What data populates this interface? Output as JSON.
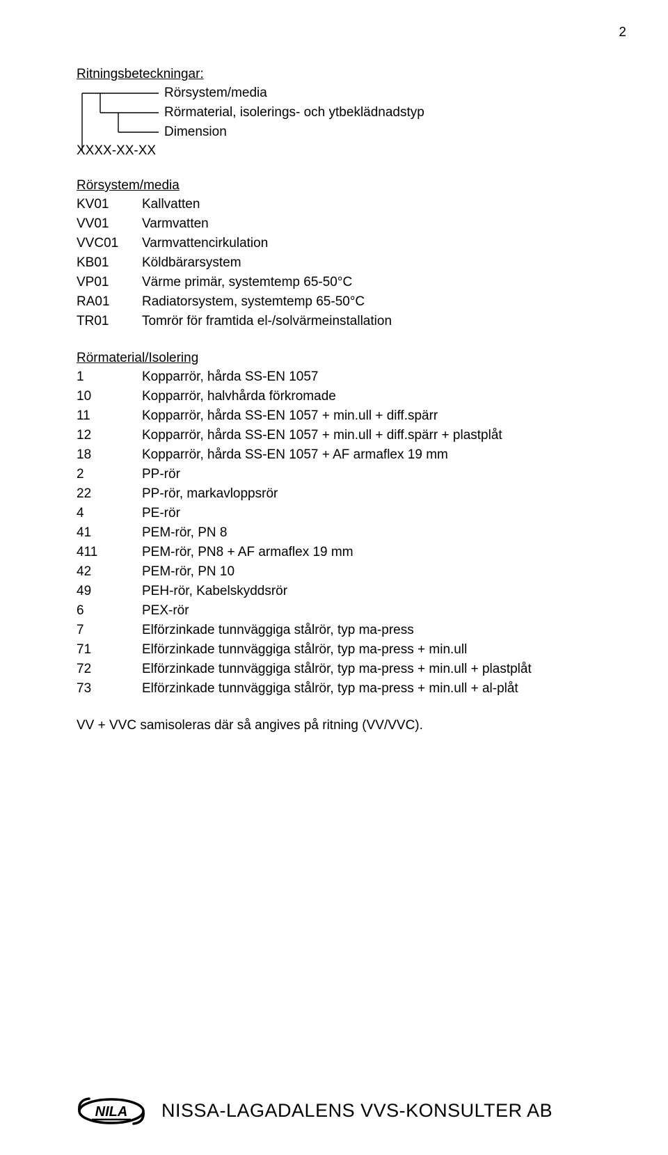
{
  "page_number": "2",
  "section1": {
    "title": "Ritningsbeteckningar:",
    "tree_labels": [
      "Rörsystem/media",
      "Rörmaterial, isolerings- och ytbeklädnadstyp",
      "Dimension"
    ],
    "code_line": "XXXX-XX-XX"
  },
  "rorsystem": {
    "title": "Rörsystem/media",
    "rows": [
      {
        "k": "KV01",
        "v": "Kallvatten"
      },
      {
        "k": "VV01",
        "v": "Varmvatten"
      },
      {
        "k": "VVC01",
        "v": "Varmvattencirkulation"
      },
      {
        "k": "KB01",
        "v": "Köldbärarsystem"
      },
      {
        "k": "VP01",
        "v": "Värme primär, systemtemp 65-50°C"
      },
      {
        "k": "RA01",
        "v": "Radiatorsystem, systemtemp 65-50°C"
      },
      {
        "k": "TR01",
        "v": "Tomrör för framtida el-/solvärmeinstallation"
      }
    ]
  },
  "material": {
    "title": "Rörmaterial/Isolering",
    "rows": [
      {
        "k": "1",
        "v": "Kopparrör, hårda SS-EN 1057"
      },
      {
        "k": "10",
        "v": "Kopparrör, halvhårda förkromade"
      },
      {
        "k": "11",
        "v": "Kopparrör, hårda SS-EN 1057 + min.ull + diff.spärr"
      },
      {
        "k": "12",
        "v": "Kopparrör, hårda SS-EN 1057 + min.ull + diff.spärr + plastplåt"
      },
      {
        "k": "18",
        "v": "Kopparrör, hårda SS-EN 1057 + AF armaflex 19 mm"
      },
      {
        "k": "2",
        "v": "PP-rör"
      },
      {
        "k": "22",
        "v": "PP-rör, markavloppsrör"
      },
      {
        "k": "4",
        "v": "PE-rör"
      },
      {
        "k": "41",
        "v": "PEM-rör, PN 8"
      },
      {
        "k": "411",
        "v": "PEM-rör, PN8 + AF armaflex 19 mm"
      },
      {
        "k": "42",
        "v": "PEM-rör, PN 10"
      },
      {
        "k": "49",
        "v": "PEH-rör, Kabelskyddsrör"
      },
      {
        "k": "6",
        "v": "PEX-rör"
      },
      {
        "k": "7",
        "v": "Elförzinkade tunnväggiga stålrör, typ ma-press"
      },
      {
        "k": "71",
        "v": "Elförzinkade tunnväggiga stålrör, typ ma-press + min.ull"
      },
      {
        "k": "72",
        "v": "Elförzinkade tunnväggiga stålrör, typ ma-press + min.ull + plastplåt"
      },
      {
        "k": "73",
        "v": "Elförzinkade tunnväggiga stålrör, typ ma-press + min.ull + al-plåt"
      }
    ]
  },
  "samisol": "VV + VVC samisoleras där så angives på ritning (VV/VVC).",
  "footer": {
    "logo_text": "NILA",
    "company": "NISSA-LAGADALENS VVS-KONSULTER AB"
  },
  "colors": {
    "text": "#000000",
    "bg": "#ffffff"
  }
}
